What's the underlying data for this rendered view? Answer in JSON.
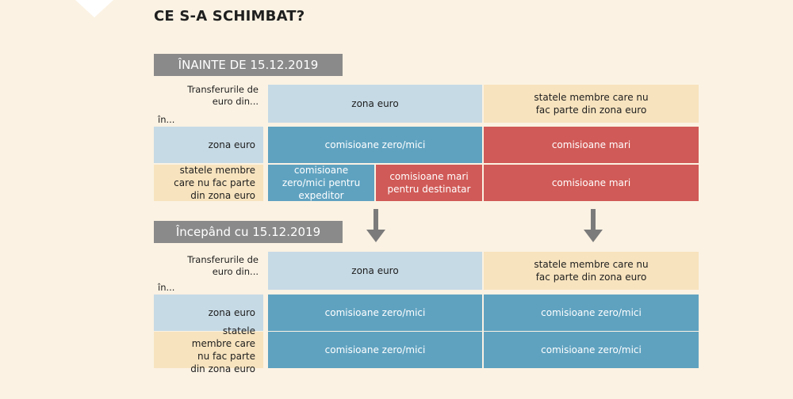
{
  "title": "CE S-A SCHIMBAT?",
  "before": {
    "banner": "ÎNAINTE DE 15.12.2019",
    "header_label": "Transferurile de euro din...",
    "in_label": "în...",
    "col_euro": "zona euro",
    "col_non_euro": "statele membre care nu fac parte din zona euro",
    "row_euro": "zona euro",
    "row_non_euro": "statele membre care nu fac parte din zona euro",
    "euro_to_euro": "comisioane zero/mici",
    "euro_to_non_euro": "comisioane mari",
    "non_euro_to_euro_sender": "comisioane zero/mici pentru expeditor",
    "non_euro_to_euro_receiver": "comisioane mari pentru destinatar",
    "non_euro_to_non_euro": "comisioane mari"
  },
  "after": {
    "banner": "Începând cu 15.12.2019",
    "header_label": "Transferurile de euro din...",
    "in_label": "în...",
    "col_euro": "zona euro",
    "col_non_euro": "statele membre care nu fac parte din zona euro",
    "row_euro": "zona euro",
    "row_non_euro": "statele membre care nu fac parte din zona euro",
    "euro_to_euro": "comisioane zero/mici",
    "euro_to_non_euro": "comisioane zero/mici",
    "non_euro_to_euro": "comisioane zero/mici",
    "non_euro_to_non_euro": "comisioane zero/mici"
  },
  "colors": {
    "background": "#fbf2e3",
    "banner": "#8a8a8a",
    "euro_zone": "#c6dae5",
    "non_euro_zone": "#f7e3be",
    "low_fees": "#5fa2c0",
    "high_fees": "#d05a57",
    "arrow": "#7b7b7b"
  },
  "icons": [
    "down-arrow-icon"
  ]
}
